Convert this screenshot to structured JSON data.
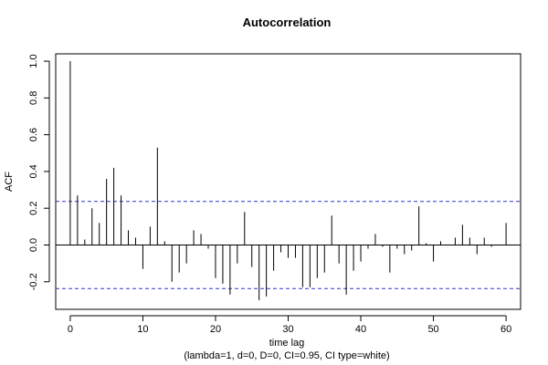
{
  "chart_data": {
    "type": "bar",
    "title": "Autocorrelation",
    "xlabel": "time lag",
    "subtitle": "(lambda=1, d=0, D=0, CI=0.95, CI type=white)",
    "ylabel": "ACF",
    "xlim": [
      -2,
      62
    ],
    "ylim": [
      -0.35,
      1.04
    ],
    "x_ticks": [
      0,
      10,
      20,
      30,
      40,
      50,
      60
    ],
    "y_ticks": [
      -0.2,
      0.0,
      0.2,
      0.4,
      0.6,
      0.8,
      1.0
    ],
    "y_tick_labels": [
      "-0.2",
      "0.0",
      "0.2",
      "0.4",
      "0.6",
      "0.8",
      "1.0"
    ],
    "ci_bounds": [
      0.237,
      -0.237
    ],
    "ci_color": "#3333cc",
    "lags": [
      0,
      1,
      2,
      3,
      4,
      5,
      6,
      7,
      8,
      9,
      10,
      11,
      12,
      13,
      14,
      15,
      16,
      17,
      18,
      19,
      20,
      21,
      22,
      23,
      24,
      25,
      26,
      27,
      28,
      29,
      30,
      31,
      32,
      33,
      34,
      35,
      36,
      37,
      38,
      39,
      40,
      41,
      42,
      43,
      44,
      45,
      46,
      47,
      48,
      49,
      50,
      51,
      52,
      53,
      54,
      55,
      56,
      57,
      58,
      59,
      60
    ],
    "values": [
      1.0,
      0.27,
      0.03,
      0.2,
      0.12,
      0.36,
      0.42,
      0.27,
      0.08,
      0.04,
      -0.13,
      0.1,
      0.53,
      0.02,
      -0.2,
      -0.15,
      -0.1,
      0.08,
      0.06,
      -0.02,
      -0.18,
      -0.21,
      -0.27,
      -0.1,
      0.18,
      -0.12,
      -0.3,
      -0.28,
      -0.14,
      -0.04,
      -0.07,
      -0.07,
      -0.23,
      -0.23,
      -0.18,
      -0.15,
      0.16,
      -0.1,
      -0.27,
      -0.14,
      -0.09,
      -0.02,
      0.06,
      -0.01,
      -0.15,
      -0.02,
      -0.05,
      -0.03,
      0.21,
      0.01,
      -0.09,
      0.02,
      0.0,
      0.04,
      0.11,
      0.04,
      -0.05,
      0.04,
      -0.01,
      0.0,
      0.12
    ]
  }
}
